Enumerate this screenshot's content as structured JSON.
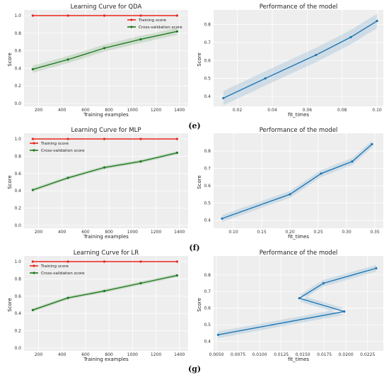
{
  "captions": [
    "(e)",
    "(f)",
    "(g)"
  ],
  "chart_data": [
    {
      "type": "line",
      "title": "Learning Curve for QDA",
      "xlabel": "Training examples",
      "ylabel": "Score",
      "xlim": [
        100,
        1450
      ],
      "ylim": [
        0.0,
        1.0
      ],
      "x_ticks": [
        200,
        400,
        600,
        800,
        1000,
        1200,
        1400
      ],
      "y_ticks": [
        0.0,
        0.2,
        0.4,
        0.6,
        0.8,
        1.0
      ],
      "legend": "top-right",
      "series": [
        {
          "name": "Training score",
          "color": "#e8271e",
          "x": [
            150,
            450,
            760,
            1070,
            1380
          ],
          "y": [
            1.0,
            1.0,
            1.0,
            1.0,
            1.0
          ],
          "band": 0.0
        },
        {
          "name": "Cross-validation score",
          "color": "#1e7a1e",
          "x": [
            150,
            450,
            760,
            1070,
            1380
          ],
          "y": [
            0.39,
            0.5,
            0.63,
            0.73,
            0.82
          ],
          "band": 0.04
        }
      ]
    },
    {
      "type": "line",
      "title": "Performance of the model",
      "xlabel": "fit_times",
      "ylabel": "Score",
      "xlim": [
        0.008,
        0.102
      ],
      "ylim": [
        0.36,
        0.85
      ],
      "x_ticks": [
        0.02,
        0.04,
        0.06,
        0.08,
        0.1
      ],
      "y_ticks": [
        0.4,
        0.5,
        0.6,
        0.7,
        0.8
      ],
      "series": [
        {
          "color": "#1f77b4",
          "x": [
            0.012,
            0.036,
            0.065,
            0.085,
            0.1
          ],
          "y": [
            0.39,
            0.5,
            0.63,
            0.73,
            0.82
          ],
          "band": 0.04
        }
      ]
    },
    {
      "type": "line",
      "title": "Learning Curve for MLP",
      "xlabel": "Training examples",
      "ylabel": "Score",
      "xlim": [
        100,
        1450
      ],
      "ylim": [
        0.0,
        1.0
      ],
      "x_ticks": [
        200,
        400,
        600,
        800,
        1000,
        1200,
        1400
      ],
      "y_ticks": [
        0.0,
        0.2,
        0.4,
        0.6,
        0.8,
        1.0
      ],
      "legend": "top-left",
      "series": [
        {
          "name": "Training score",
          "color": "#e8271e",
          "x": [
            150,
            450,
            760,
            1070,
            1380
          ],
          "y": [
            1.0,
            1.0,
            1.0,
            1.0,
            1.0
          ],
          "band": 0.0
        },
        {
          "name": "Cross-validation score",
          "color": "#1e7a1e",
          "x": [
            150,
            450,
            760,
            1070,
            1380
          ],
          "y": [
            0.41,
            0.55,
            0.67,
            0.74,
            0.84
          ],
          "band": 0.02
        }
      ]
    },
    {
      "type": "line",
      "title": "Performance of the model",
      "xlabel": "fit_times",
      "ylabel": "Score",
      "xlim": [
        0.07,
        0.36
      ],
      "ylim": [
        0.37,
        0.87
      ],
      "x_ticks": [
        0.1,
        0.15,
        0.2,
        0.25,
        0.3,
        0.35
      ],
      "y_ticks": [
        0.4,
        0.5,
        0.6,
        0.7,
        0.8
      ],
      "series": [
        {
          "color": "#1f77b4",
          "x": [
            0.08,
            0.2,
            0.255,
            0.31,
            0.345
          ],
          "y": [
            0.41,
            0.55,
            0.67,
            0.74,
            0.84
          ],
          "band": 0.02
        }
      ]
    },
    {
      "type": "line",
      "title": "Learning Curve for LR",
      "xlabel": "Training examples",
      "ylabel": "Score",
      "xlim": [
        100,
        1450
      ],
      "ylim": [
        0.0,
        1.0
      ],
      "x_ticks": [
        200,
        400,
        600,
        800,
        1000,
        1200,
        1400
      ],
      "y_ticks": [
        0.0,
        0.2,
        0.4,
        0.6,
        0.8,
        1.0
      ],
      "legend": "top-left",
      "series": [
        {
          "name": "Training score",
          "color": "#e8271e",
          "x": [
            150,
            450,
            760,
            1070,
            1380
          ],
          "y": [
            1.0,
            1.0,
            1.0,
            1.0,
            1.0
          ],
          "band": 0.0
        },
        {
          "name": "Cross-validation score",
          "color": "#1e7a1e",
          "x": [
            150,
            450,
            760,
            1070,
            1380
          ],
          "y": [
            0.44,
            0.58,
            0.66,
            0.75,
            0.84
          ],
          "band": 0.02
        }
      ]
    },
    {
      "type": "line",
      "title": "Performance of the model",
      "xlabel": "fit_times",
      "ylabel": "Score",
      "xlim": [
        0.005,
        0.024
      ],
      "ylim": [
        0.36,
        0.88
      ],
      "x_ticks": [
        0.005,
        0.0075,
        0.01,
        0.0125,
        0.015,
        0.0175,
        0.02,
        0.0225
      ],
      "y_ticks": [
        0.4,
        0.5,
        0.6,
        0.7,
        0.8
      ],
      "series": [
        {
          "color": "#1f77b4",
          "x": [
            0.0052,
            0.0198,
            0.0146,
            0.0174,
            0.0235
          ],
          "y": [
            0.44,
            0.58,
            0.66,
            0.75,
            0.84
          ],
          "band": 0.02
        }
      ]
    }
  ]
}
